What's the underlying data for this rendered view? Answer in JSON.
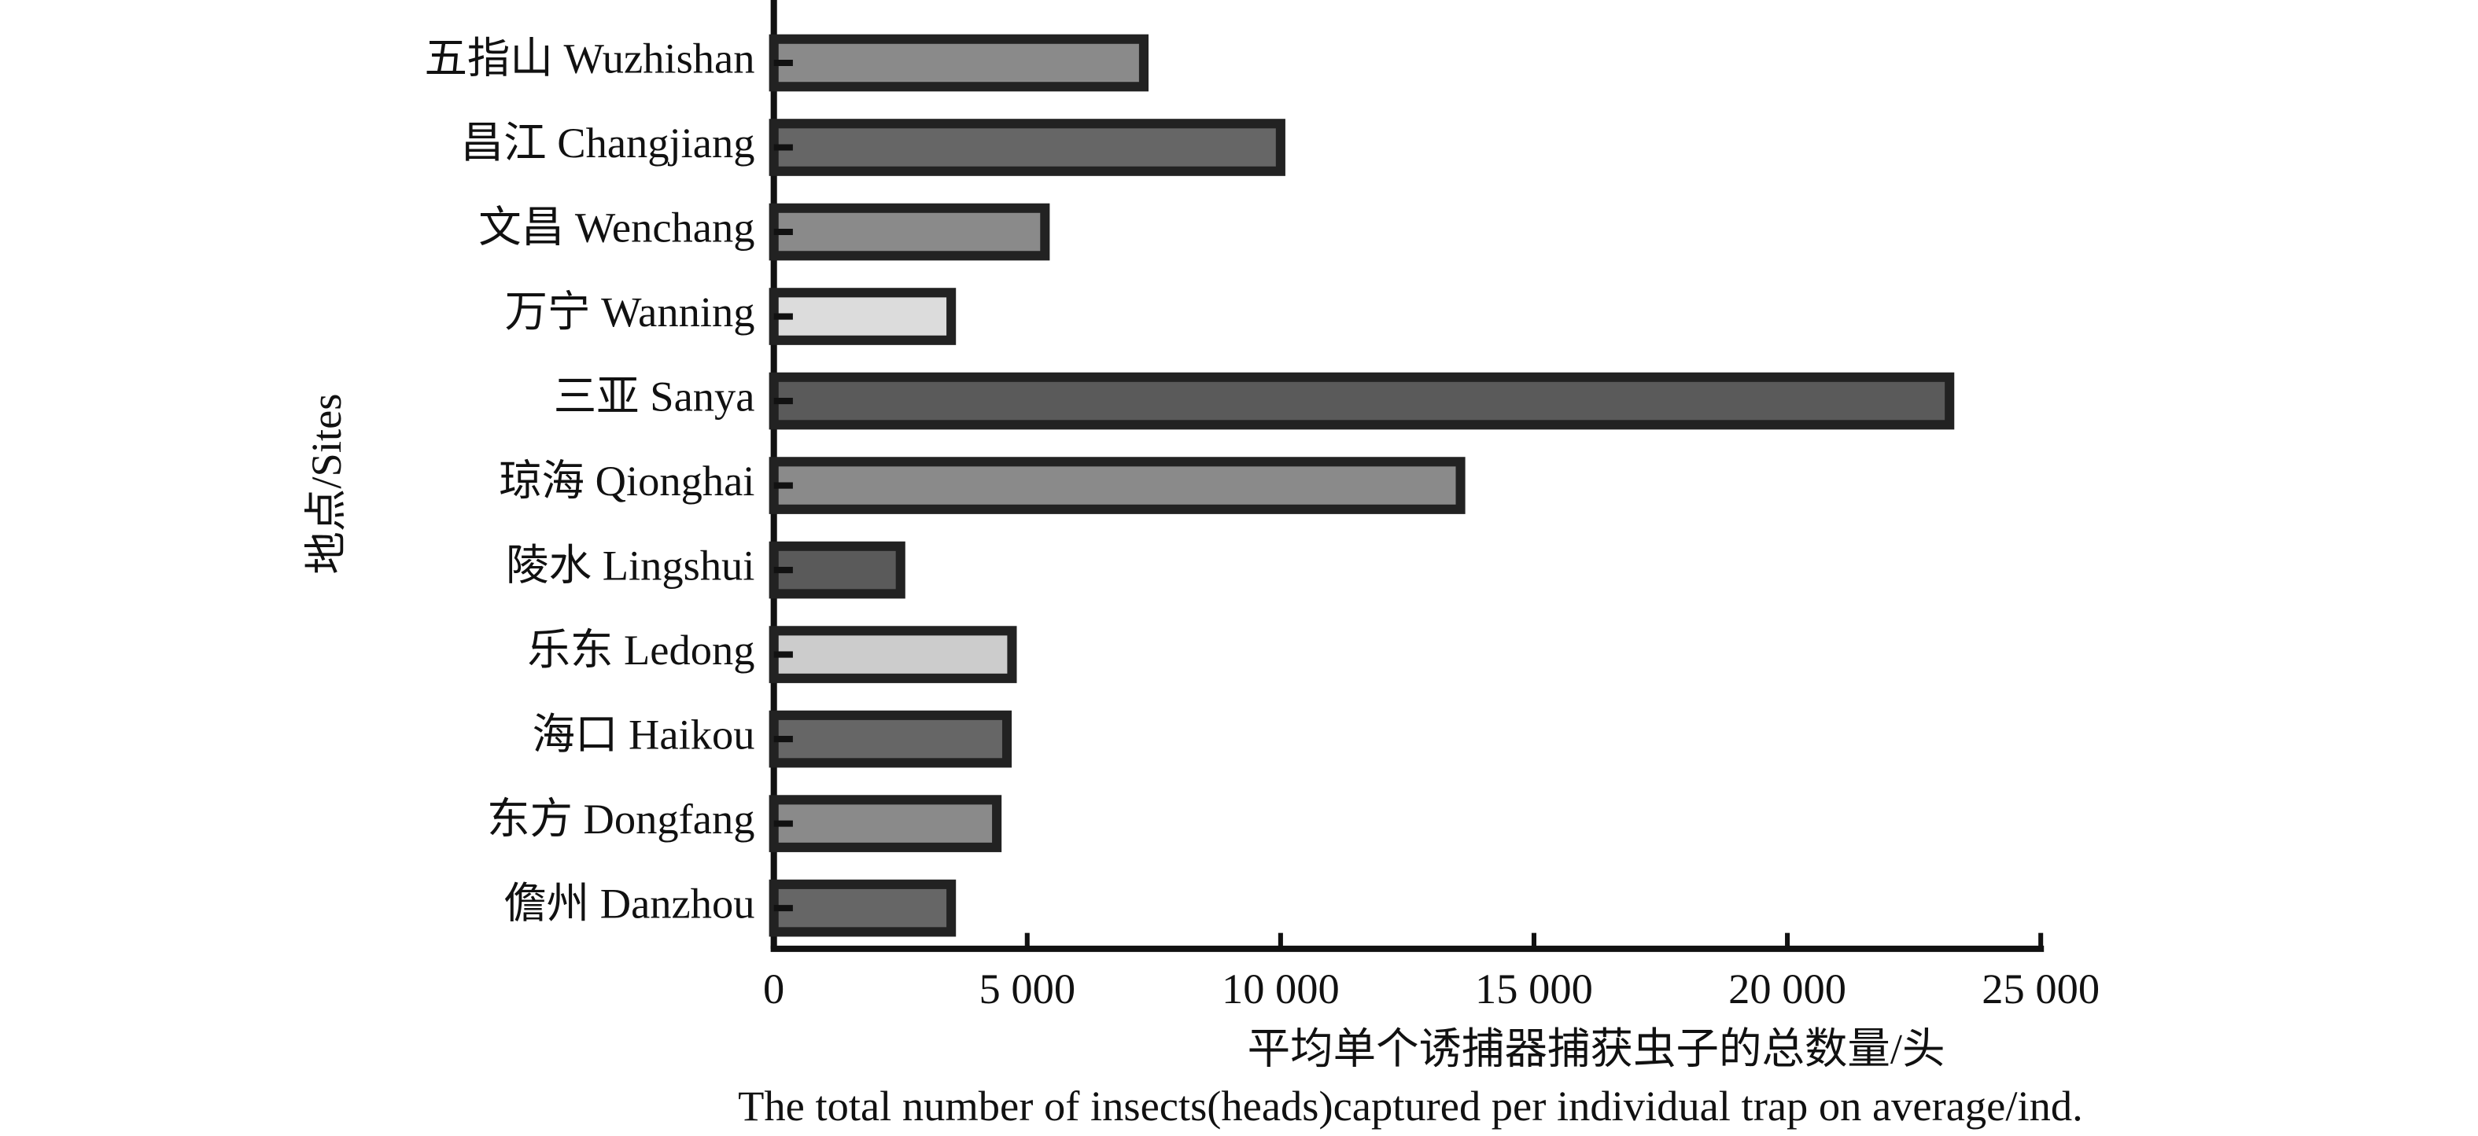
{
  "chart_data": {
    "type": "bar",
    "orientation": "horizontal",
    "xlabel": [
      "平均单个诱捕器捕获虫子的总数量/头",
      "The total number of insects(heads)captured per individual trap on average/ind."
    ],
    "ylabel": "地点/Sites",
    "categories": [
      "五指山 Wuzhishan",
      "昌江 Changjiang",
      "文昌 Wenchang",
      "万宁 Wanning",
      "三亚 Sanya",
      "琼海 Qionghai",
      "陵水 Lingshui",
      "乐东 Ledong",
      "海口 Haikou",
      "东方 Dongfang",
      "儋州 Danzhou"
    ],
    "values": [
      7300,
      10000,
      5350,
      3500,
      23200,
      13550,
      2500,
      4700,
      4600,
      4400,
      3500
    ],
    "colors": [
      "#8a8a8a",
      "#666666",
      "#8a8a8a",
      "#dcdcdc",
      "#5a5a5a",
      "#8a8a8a",
      "#5a5a5a",
      "#cccccc",
      "#666666",
      "#8a8a8a",
      "#666666"
    ],
    "edge_color": "#222222",
    "xlim": [
      0,
      25000
    ],
    "xticks": [
      0,
      {
        "value": 5000,
        "label": "5 000"
      },
      {
        "value": 10000,
        "label": "10 000"
      },
      {
        "value": 15000,
        "label": "15 000"
      },
      {
        "value": 20000,
        "label": "20 000"
      },
      {
        "value": 25000,
        "label": "25 000"
      }
    ],
    "grid": false
  }
}
